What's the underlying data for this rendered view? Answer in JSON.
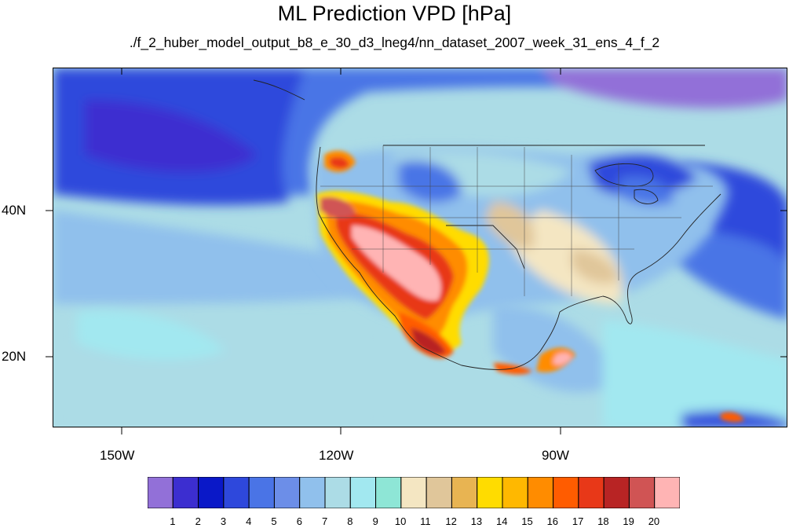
{
  "title": "ML Prediction VPD [hPa]",
  "subtitle": "./f_2_huber_model_output_b8_e_30_d3_lneg4/nn_dataset_2007_week_31_ens_4_f_2",
  "map": {
    "latitude_labels": [
      "40N",
      "20N"
    ],
    "longitude_labels": [
      "150W",
      "120W",
      "90W"
    ]
  },
  "colorbar": {
    "labels": [
      "1",
      "2",
      "3",
      "4",
      "5",
      "6",
      "7",
      "8",
      "9",
      "10",
      "11",
      "12",
      "13",
      "14",
      "15",
      "16",
      "17",
      "18",
      "19",
      "20"
    ],
    "colors": [
      "#9270d8",
      "#3c2ed0",
      "#0a18c8",
      "#2e48dc",
      "#4a74e6",
      "#6c8ee8",
      "#90c0ec",
      "#acdce6",
      "#a2e8f0",
      "#8ee6d6",
      "#f4e6c2",
      "#e0c69a",
      "#e8b452",
      "#ffdc00",
      "#ffb800",
      "#ff8c00",
      "#ff5c00",
      "#e83818",
      "#b82424",
      "#d05454",
      "#ffb4b4"
    ]
  }
}
